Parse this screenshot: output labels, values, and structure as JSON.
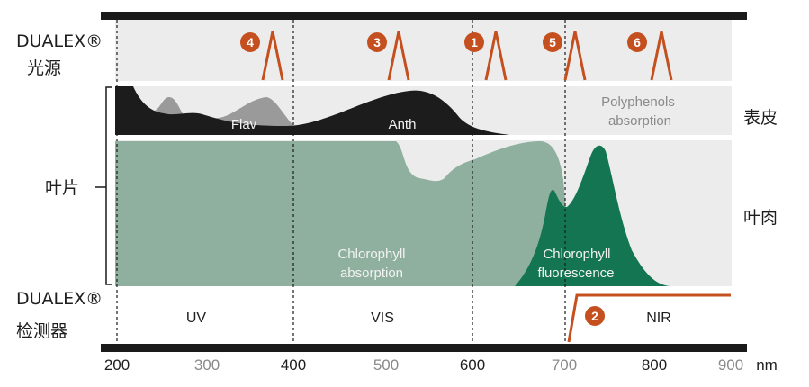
{
  "left_labels": {
    "light_source_line1": "DUALEX®",
    "light_source_line2": "光源",
    "leaf": "叶片",
    "detector_line1": "DUALEX®",
    "detector_line2": "检测器"
  },
  "right_labels": {
    "epidermis": "表皮",
    "mesophyll": "叶肉"
  },
  "led_numbers": [
    "4",
    "3",
    "1",
    "5",
    "6"
  ],
  "detector_number": "2",
  "curve_labels": {
    "flav": "Flav",
    "anth": "Anth",
    "polyphenols_line1": "Polyphenols",
    "polyphenols_line2": "absorption",
    "chl_abs_line1": "Chlorophyll",
    "chl_abs_line2": "absorption",
    "chl_fl_line1": "Chlorophyll",
    "chl_fl_line2": "fluorescence"
  },
  "bands": {
    "uv": "UV",
    "vis": "VIS",
    "nir": "NIR"
  },
  "axis": {
    "ticks": [
      "200",
      "300",
      "400",
      "500",
      "600",
      "700",
      "800",
      "900"
    ],
    "unit": "nm"
  },
  "colors": {
    "accent": "#c5501f",
    "bar": "#1a1a1a",
    "panel": "#ececec",
    "flav": "#9a9a9a",
    "anth": "#1c1c1c",
    "chl_abs": "#8fb09f",
    "chl_fl": "#137552",
    "tick_dark": "#1e1e1e",
    "tick_grey": "#8a8a8a"
  }
}
